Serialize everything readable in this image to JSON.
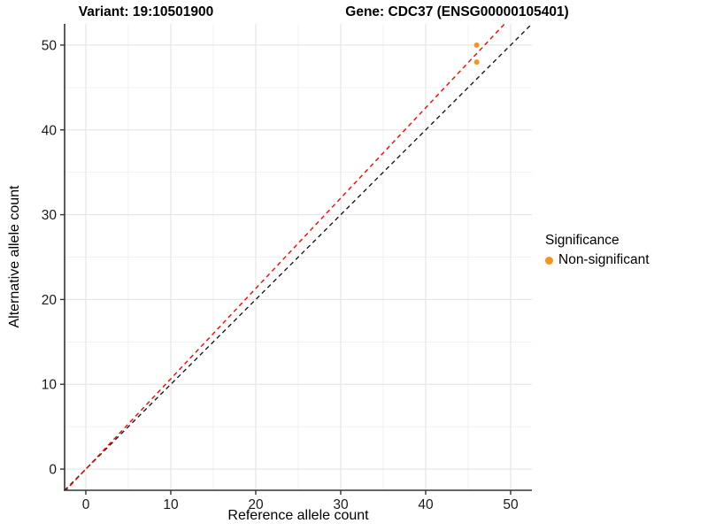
{
  "titles": {
    "variant": "Variant: 19:10501900",
    "gene": "Gene: CDC37 (ENSG00000105401)"
  },
  "axes": {
    "xlabel": "Reference allele count",
    "ylabel": "Alternative allele count"
  },
  "legend": {
    "title": "Significance",
    "items": [
      {
        "label": "Non-significant",
        "color": "#F59420"
      }
    ]
  },
  "colors": {
    "point": "#F59420",
    "fit_line": "#FF0000",
    "identity_line": "#1A1A1A",
    "major_grid": "#E4E4E4",
    "minor_grid": "#F1F1F1",
    "axis_line": "#333333",
    "tick_label": "#1A1A1A"
  },
  "chart_data": {
    "type": "scatter",
    "title_left": "Variant: 19:10501900",
    "title_right": "Gene: CDC37 (ENSG00000105401)",
    "xlabel": "Reference allele count",
    "ylabel": "Alternative allele count",
    "xlim": [
      -2.5,
      52.5
    ],
    "ylim": [
      -2.5,
      52.5
    ],
    "xticks": [
      0,
      10,
      20,
      30,
      40,
      50
    ],
    "yticks": [
      0,
      10,
      20,
      30,
      40,
      50
    ],
    "minor_ticks": [
      5,
      15,
      25,
      35,
      45
    ],
    "grid": true,
    "legend_position": "right",
    "series": [
      {
        "name": "Non-significant",
        "color": "#F59420",
        "points": [
          {
            "x": 46,
            "y": 50
          },
          {
            "x": 46,
            "y": 48
          }
        ]
      }
    ],
    "lines": [
      {
        "name": "identity-line",
        "slope": 1.0,
        "intercept": 0,
        "color": "#1A1A1A",
        "dashed": true
      },
      {
        "name": "fit-line",
        "slope": 1.0652,
        "intercept": 0,
        "color": "#FF0000",
        "dashed": true
      }
    ]
  }
}
